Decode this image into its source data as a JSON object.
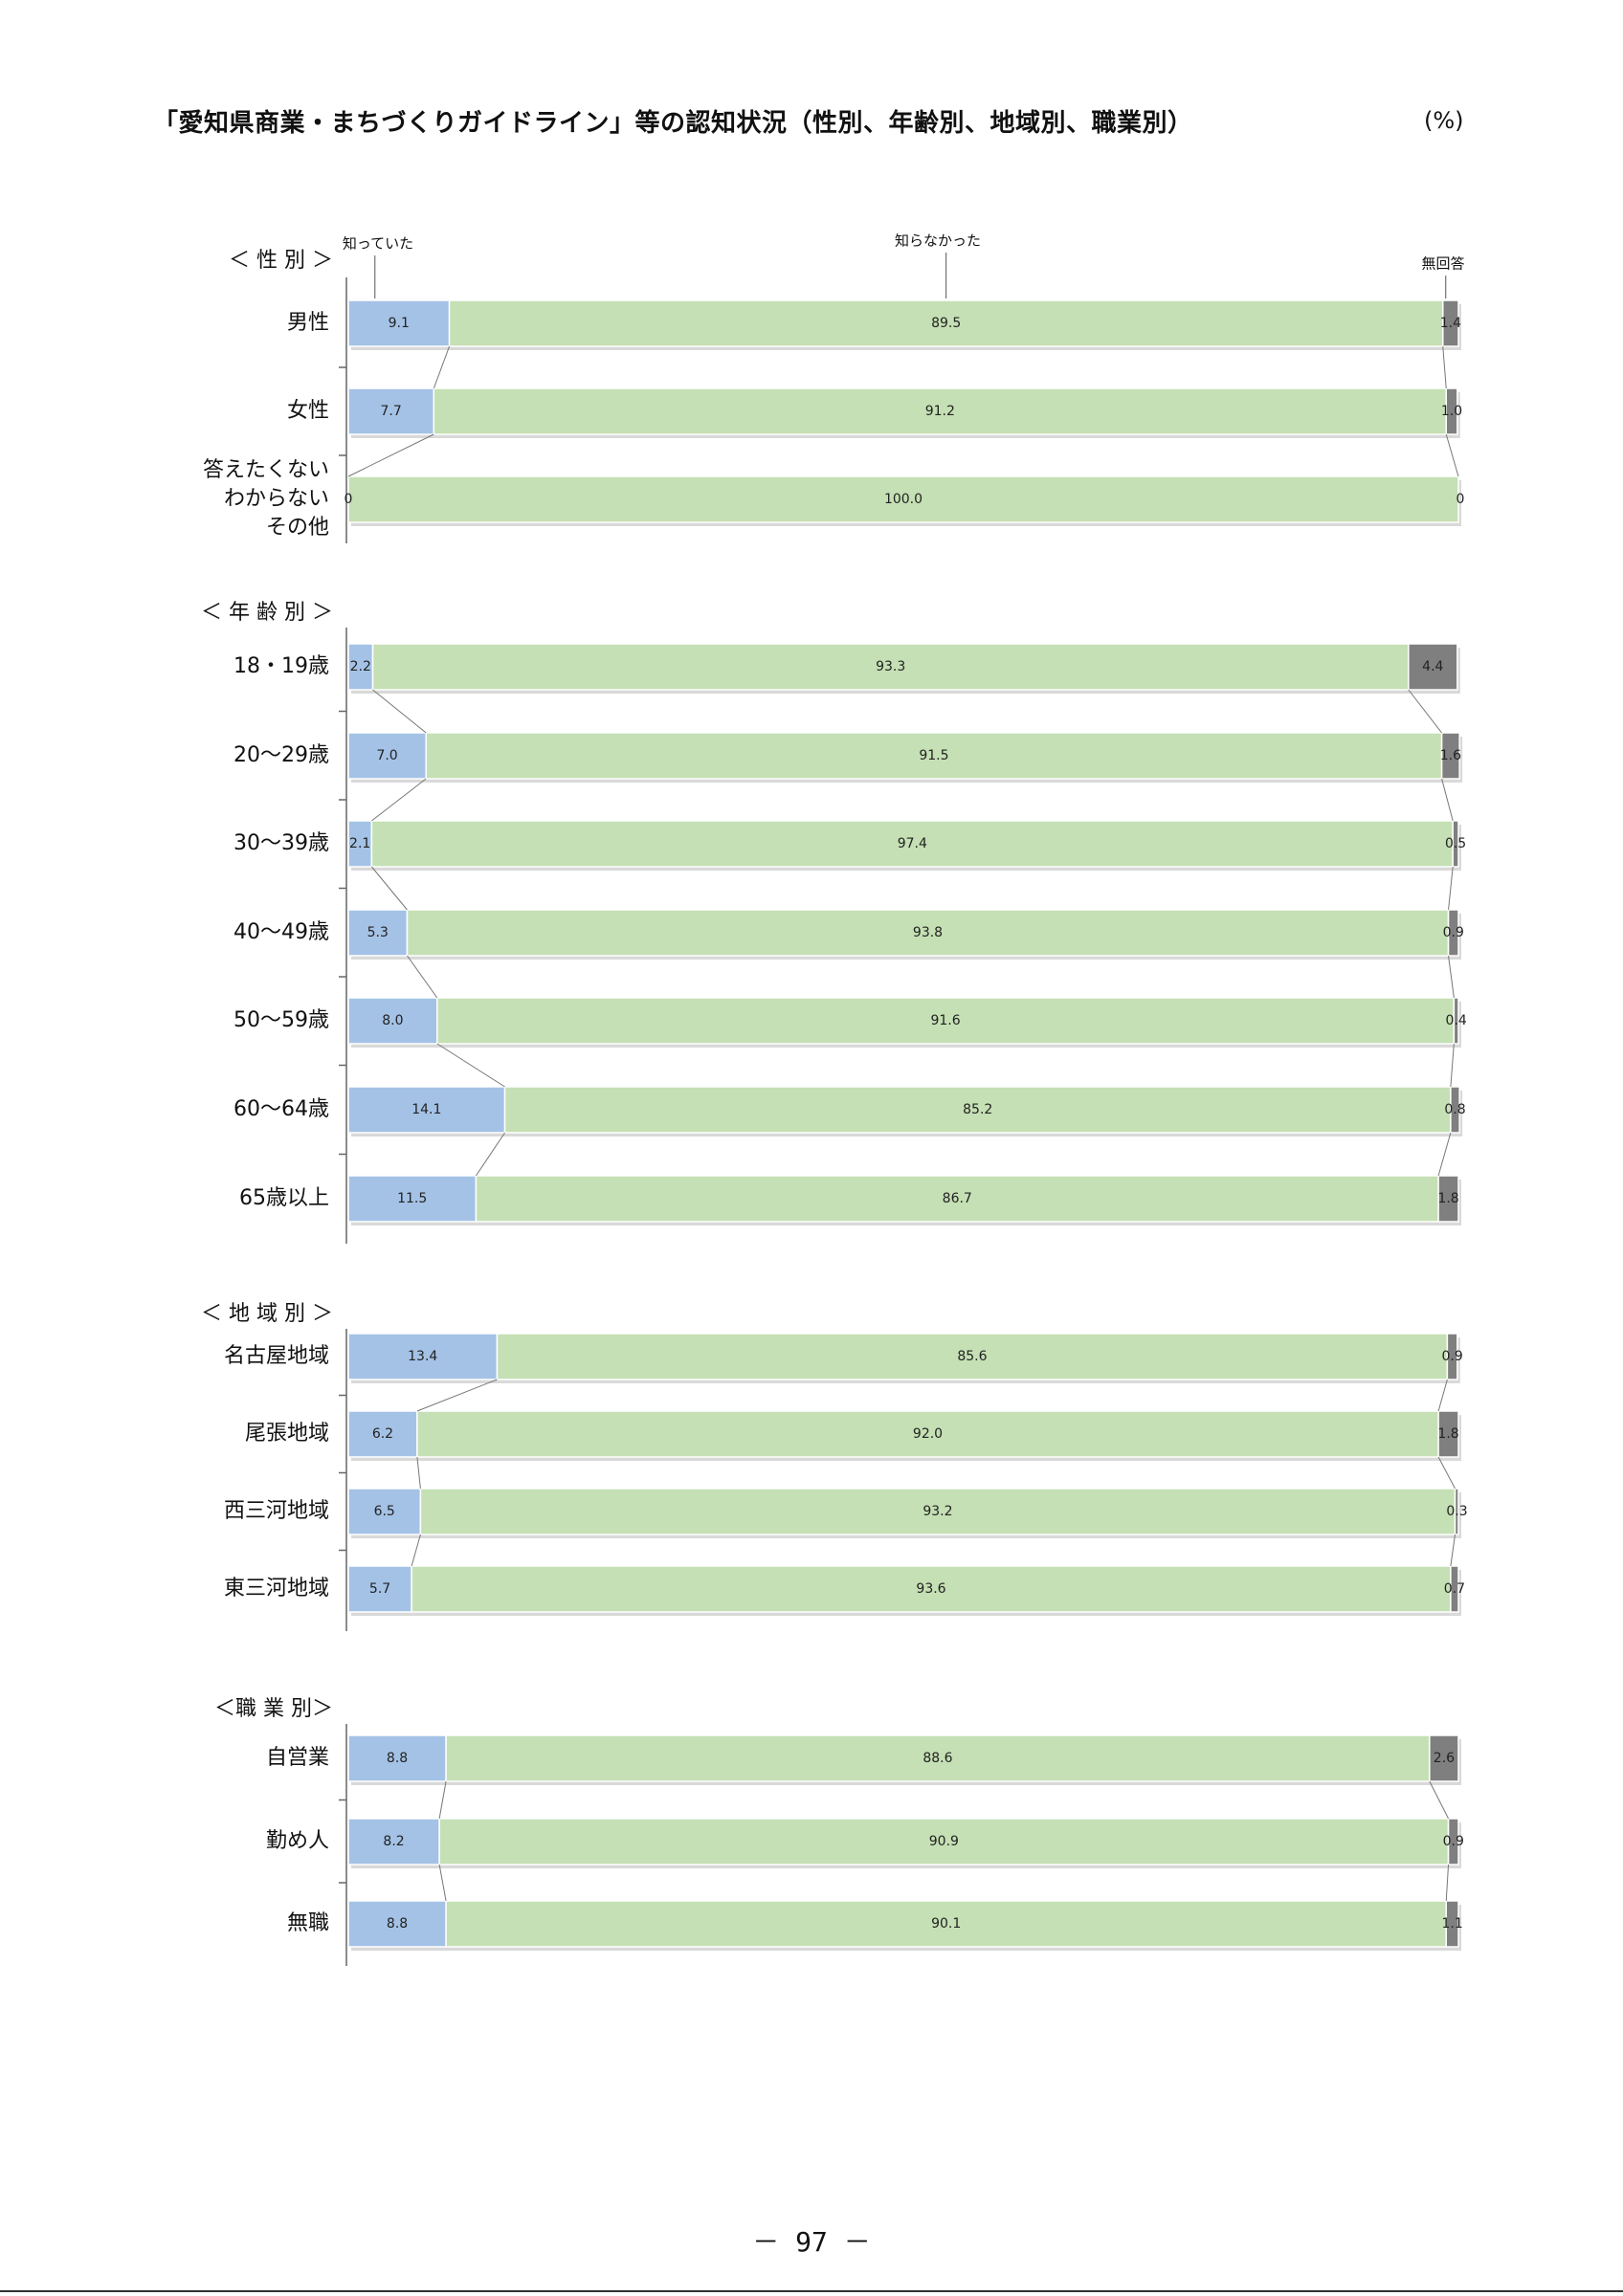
{
  "title": "「愛知県商業・まちづくりガイドライン」等の認知状況（性別、年齢別、地域別、職業別）",
  "unit": "(%)",
  "page_number": "－ 97 －",
  "colors": {
    "known": "#a4c2e6",
    "unknown": "#c5e0b4",
    "no_answer": "#7f7f7f"
  },
  "chart_data": {
    "type": "bar",
    "stacked": true,
    "orientation": "horizontal",
    "xlim": [
      0,
      100
    ],
    "series_names": [
      "知っていた",
      "知らなかった",
      "無回答"
    ],
    "sections": [
      {
        "label": "＜ 性 別 ＞",
        "categories": [
          {
            "label": "男性",
            "values": [
              9.1,
              89.5,
              1.4
            ],
            "labels": [
              "9.1",
              "89.5",
              "1.4"
            ]
          },
          {
            "label": "女性",
            "values": [
              7.7,
              91.2,
              1.0
            ],
            "labels": [
              "7.7",
              "91.2",
              "1.0"
            ]
          },
          {
            "label": "答えたくない\nわからない\nその他",
            "values": [
              0,
              100.0,
              0
            ],
            "labels": [
              "0",
              "100.0",
              "0"
            ]
          }
        ]
      },
      {
        "label": "＜ 年 齢 別 ＞",
        "categories": [
          {
            "label": "18・19歳",
            "values": [
              2.2,
              93.3,
              4.4
            ],
            "labels": [
              "2.2",
              "93.3",
              "4.4"
            ]
          },
          {
            "label": "20～29歳",
            "values": [
              7.0,
              91.5,
              1.6
            ],
            "labels": [
              "7.0",
              "91.5",
              "1.6"
            ]
          },
          {
            "label": "30～39歳",
            "values": [
              2.1,
              97.4,
              0.5
            ],
            "labels": [
              "2.1",
              "97.4",
              "0.5"
            ]
          },
          {
            "label": "40～49歳",
            "values": [
              5.3,
              93.8,
              0.9
            ],
            "labels": [
              "5.3",
              "93.8",
              "0.9"
            ]
          },
          {
            "label": "50～59歳",
            "values": [
              8.0,
              91.6,
              0.4
            ],
            "labels": [
              "8.0",
              "91.6",
              "0.4"
            ]
          },
          {
            "label": "60～64歳",
            "values": [
              14.1,
              85.2,
              0.8
            ],
            "labels": [
              "14.1",
              "85.2",
              "0.8"
            ]
          },
          {
            "label": "65歳以上",
            "values": [
              11.5,
              86.7,
              1.8
            ],
            "labels": [
              "11.5",
              "86.7",
              "1.8"
            ]
          }
        ]
      },
      {
        "label": "＜ 地 域 別 ＞",
        "categories": [
          {
            "label": "名古屋地域",
            "values": [
              13.4,
              85.6,
              0.9
            ],
            "labels": [
              "13.4",
              "85.6",
              "0.9"
            ]
          },
          {
            "label": "尾張地域",
            "values": [
              6.2,
              92.0,
              1.8
            ],
            "labels": [
              "6.2",
              "92.0",
              "1.8"
            ]
          },
          {
            "label": "西三河地域",
            "values": [
              6.5,
              93.2,
              0.3
            ],
            "labels": [
              "6.5",
              "93.2",
              "0.3"
            ]
          },
          {
            "label": "東三河地域",
            "values": [
              5.7,
              93.6,
              0.7
            ],
            "labels": [
              "5.7",
              "93.6",
              "0.7"
            ]
          }
        ]
      },
      {
        "label": "＜職 業 別＞",
        "categories": [
          {
            "label": "自営業",
            "values": [
              8.8,
              88.6,
              2.6
            ],
            "labels": [
              "8.8",
              "88.6",
              "2.6"
            ]
          },
          {
            "label": "勤め人",
            "values": [
              8.2,
              90.9,
              0.9
            ],
            "labels": [
              "8.2",
              "90.9",
              "0.9"
            ]
          },
          {
            "label": "無職",
            "values": [
              8.8,
              90.1,
              1.1
            ],
            "labels": [
              "8.8",
              "90.1",
              "1.1"
            ]
          }
        ]
      }
    ]
  }
}
